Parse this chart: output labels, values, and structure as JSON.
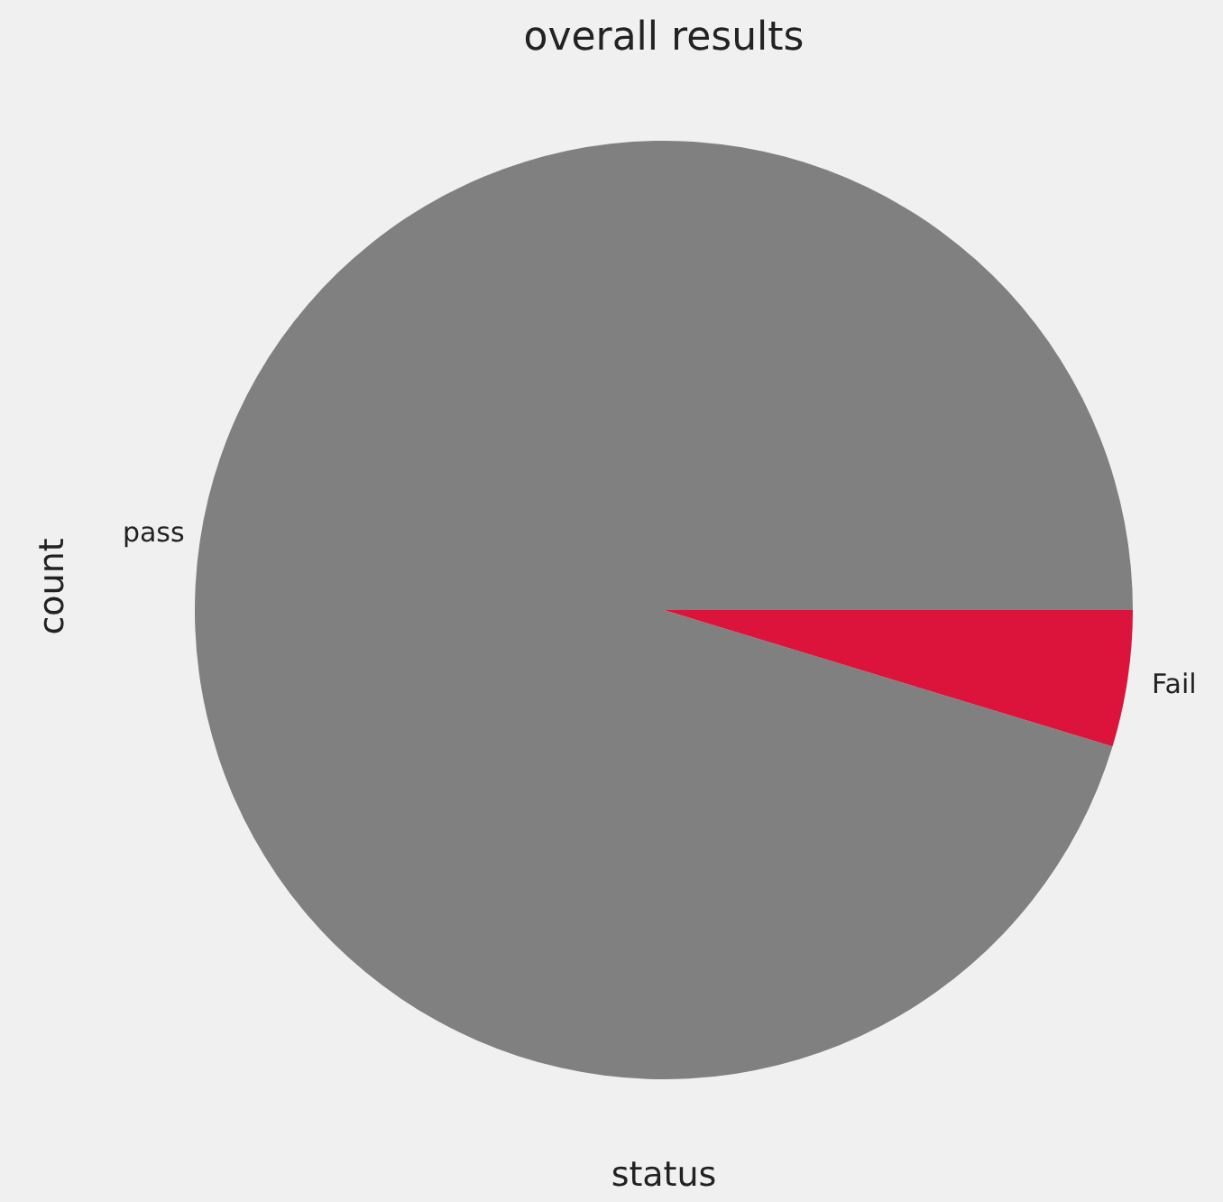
{
  "chart_data": {
    "type": "pie",
    "title": "overall results",
    "xlabel": "status",
    "ylabel": "count",
    "categories": [
      "pass",
      "Fail"
    ],
    "values": [
      95.3,
      4.7
    ],
    "colors": [
      "#808080",
      "#dc143c"
    ],
    "legend": false
  }
}
